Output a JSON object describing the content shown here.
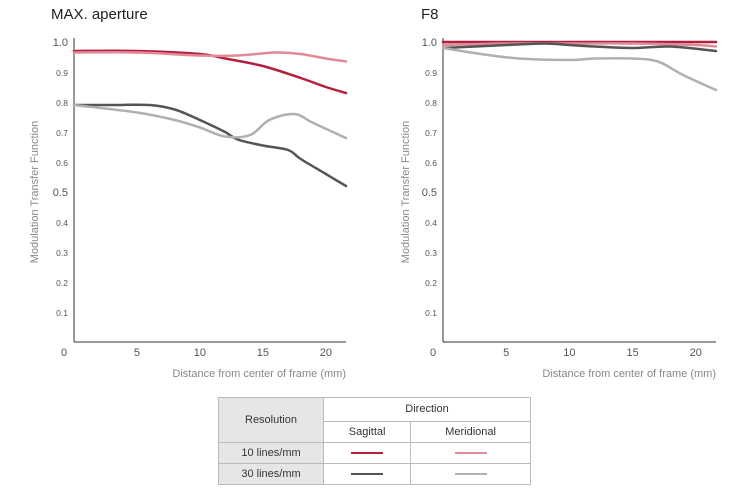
{
  "chart_data": [
    {
      "type": "line",
      "title": "MAX. aperture",
      "xlabel": "Distance from center of frame (mm)",
      "ylabel": "Modulation Transfer Function",
      "xlim": [
        0,
        21.6
      ],
      "ylim": [
        0,
        1.0
      ],
      "xticks": [
        "0",
        "5",
        "10",
        "15",
        "20"
      ],
      "yticks": [
        "0.1",
        "0.2",
        "0.3",
        "0.4",
        "0.5",
        "0.6",
        "0.7",
        "0.8",
        "0.9",
        "1.0"
      ],
      "series": [
        {
          "name": "10 lines/mm Sagittal",
          "color": "#b51f3e",
          "x": [
            0,
            5,
            10,
            12,
            15,
            18,
            20,
            21.6
          ],
          "y": [
            0.97,
            0.97,
            0.96,
            0.945,
            0.92,
            0.88,
            0.85,
            0.83
          ]
        },
        {
          "name": "10 lines/mm Meridional",
          "color": "#e08a98",
          "x": [
            0,
            5,
            10,
            13,
            16,
            18,
            20,
            21.6
          ],
          "y": [
            0.965,
            0.965,
            0.955,
            0.955,
            0.965,
            0.96,
            0.945,
            0.935
          ]
        },
        {
          "name": "30 lines/mm Sagittal",
          "color": "#555555",
          "x": [
            0,
            3,
            6,
            8,
            10,
            12,
            13,
            15,
            17,
            18,
            20,
            21.6
          ],
          "y": [
            0.79,
            0.79,
            0.79,
            0.775,
            0.74,
            0.7,
            0.675,
            0.655,
            0.64,
            0.61,
            0.56,
            0.52
          ]
        },
        {
          "name": "30 lines/mm Meridional",
          "color": "#b0b0b0",
          "x": [
            0,
            5,
            8,
            10,
            12,
            14,
            15.5,
            17.5,
            19,
            21.6
          ],
          "y": [
            0.79,
            0.765,
            0.74,
            0.715,
            0.685,
            0.69,
            0.74,
            0.76,
            0.73,
            0.68
          ]
        }
      ]
    },
    {
      "type": "line",
      "title": "F8",
      "xlabel": "Distance from center of frame (mm)",
      "ylabel": "Modulation Transfer Function",
      "xlim": [
        0,
        21.6
      ],
      "ylim": [
        0,
        1.0
      ],
      "xticks": [
        "0",
        "5",
        "10",
        "15",
        "20"
      ],
      "yticks": [
        "0.1",
        "0.2",
        "0.3",
        "0.4",
        "0.5",
        "0.6",
        "0.7",
        "0.8",
        "0.9",
        "1.0"
      ],
      "series": [
        {
          "name": "10 lines/mm Sagittal",
          "color": "#b51f3e",
          "x": [
            0,
            5,
            10,
            15,
            21.6
          ],
          "y": [
            1.0,
            1.0,
            1.0,
            1.0,
            1.0
          ]
        },
        {
          "name": "10 lines/mm Meridional",
          "color": "#e08a98",
          "x": [
            0,
            5,
            10,
            15,
            20,
            21.6
          ],
          "y": [
            0.99,
            0.995,
            0.995,
            0.995,
            0.99,
            0.985
          ]
        },
        {
          "name": "30 lines/mm Sagittal",
          "color": "#555555",
          "x": [
            0,
            5,
            8,
            10,
            12,
            15,
            18,
            21.6
          ],
          "y": [
            0.98,
            0.99,
            0.995,
            0.99,
            0.985,
            0.98,
            0.985,
            0.97
          ]
        },
        {
          "name": "30 lines/mm Meridional",
          "color": "#b0b0b0",
          "x": [
            0,
            3,
            6,
            10,
            12,
            15,
            17,
            19,
            21.6
          ],
          "y": [
            0.98,
            0.96,
            0.945,
            0.94,
            0.945,
            0.945,
            0.935,
            0.89,
            0.84
          ]
        }
      ]
    }
  ],
  "legend": {
    "resolution_header": "Resolution",
    "direction_header": "Direction",
    "sagittal_header": "Sagittal",
    "meridional_header": "Meridional",
    "rows": [
      {
        "label": "10 lines/mm",
        "sagittal_color": "#b51f3e",
        "meridional_color": "#e08a98"
      },
      {
        "label": "30 lines/mm",
        "sagittal_color": "#555555",
        "meridional_color": "#b0b0b0"
      }
    ]
  }
}
